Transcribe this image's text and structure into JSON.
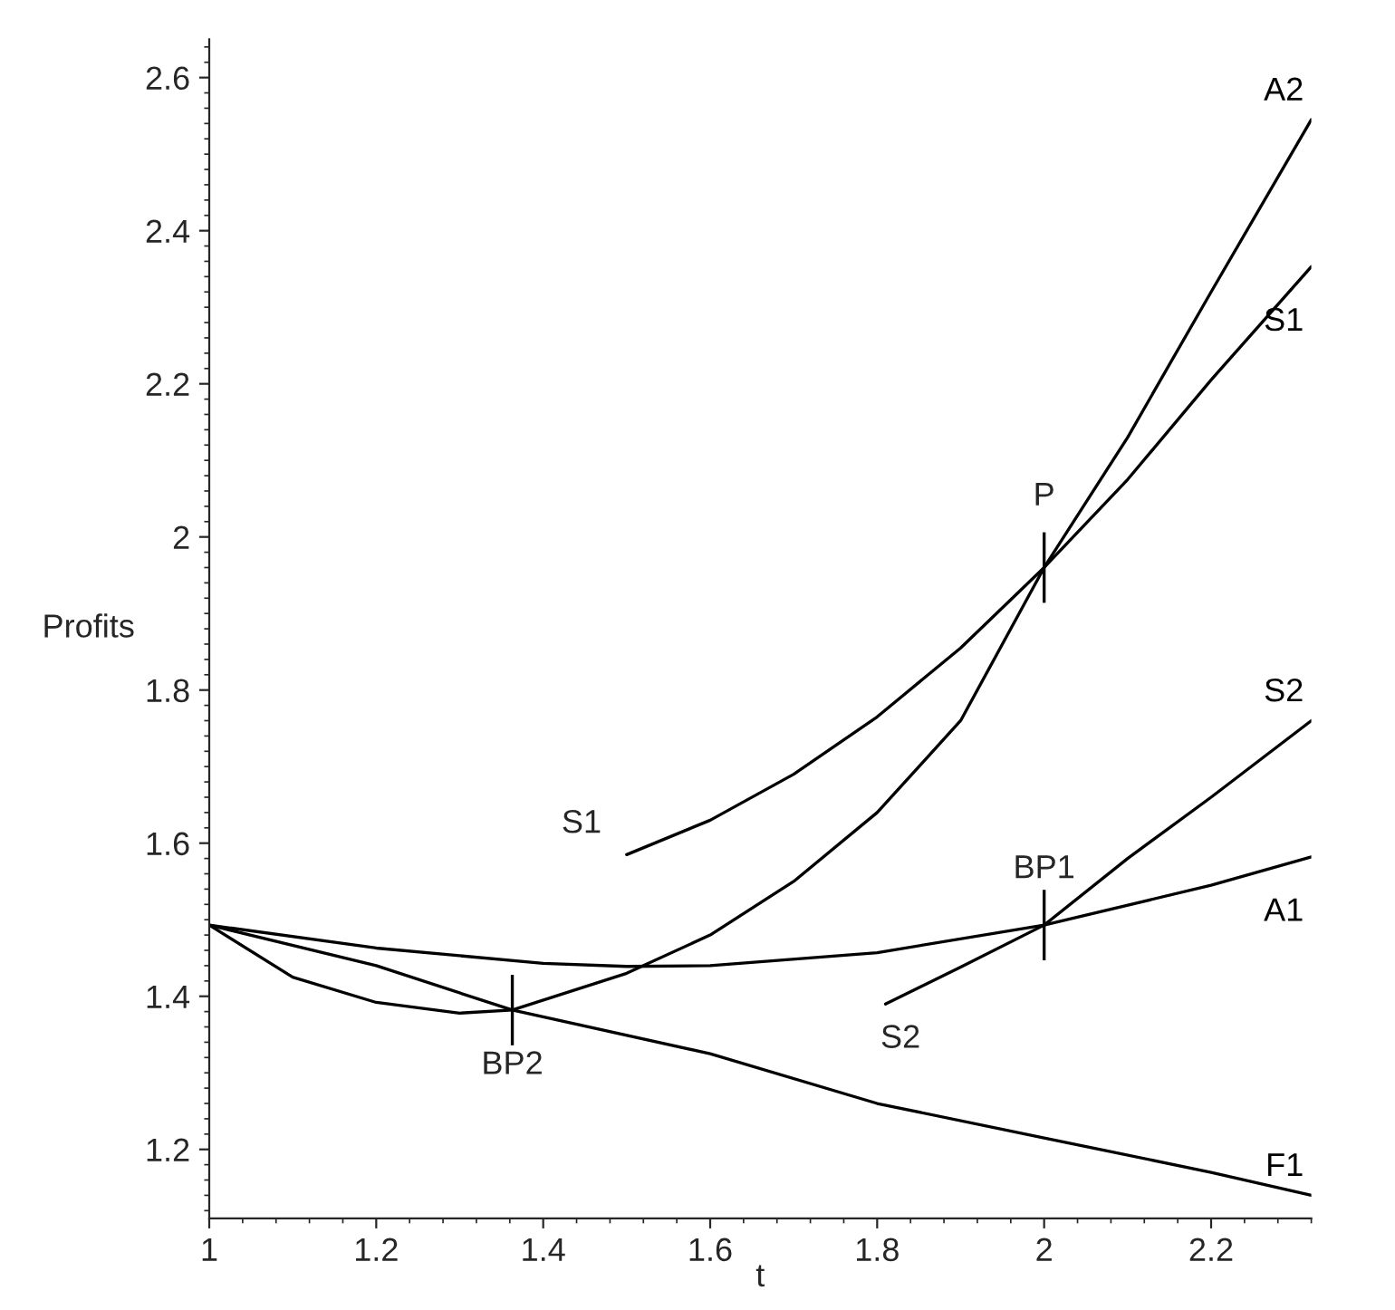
{
  "chart_data": {
    "type": "line",
    "xlabel": "t",
    "ylabel": "Profits",
    "xlim": [
      1,
      2.32
    ],
    "ylim": [
      1.11,
      2.65
    ],
    "xticks": [
      1,
      1.2,
      1.4,
      1.6,
      1.8,
      2,
      2.2
    ],
    "yticks": [
      1.2,
      1.4,
      1.6,
      1.8,
      2,
      2.2,
      2.4,
      2.6
    ],
    "grid": false,
    "legend": false,
    "marker": "none",
    "line_style": "solid",
    "series": [
      {
        "name": "F1",
        "color": "#000000",
        "x": [
          1,
          1.2,
          1.363,
          1.6,
          1.8,
          2,
          2.2,
          2.32
        ],
        "values": [
          1.493,
          1.44,
          1.382,
          1.325,
          1.26,
          1.215,
          1.17,
          1.14
        ]
      },
      {
        "name": "A1",
        "color": "#000000",
        "x": [
          1,
          1.2,
          1.4,
          1.5,
          1.6,
          1.8,
          2,
          2.2,
          2.32
        ],
        "values": [
          1.493,
          1.463,
          1.443,
          1.439,
          1.44,
          1.457,
          1.493,
          1.545,
          1.582
        ]
      },
      {
        "name": "A2",
        "color": "#000000",
        "x": [
          1,
          1.1,
          1.2,
          1.3,
          1.363,
          1.5,
          1.6,
          1.7,
          1.8,
          1.9,
          2,
          2.1,
          2.2,
          2.32
        ],
        "values": [
          1.493,
          1.425,
          1.392,
          1.378,
          1.382,
          1.43,
          1.48,
          1.55,
          1.64,
          1.76,
          1.96,
          2.13,
          2.32,
          2.545
        ]
      },
      {
        "name": "S1",
        "color": "#000000",
        "x": [
          1.5,
          1.6,
          1.7,
          1.8,
          1.9,
          2,
          2.1,
          2.2,
          2.32
        ],
        "values": [
          1.585,
          1.63,
          1.69,
          1.765,
          1.855,
          1.96,
          2.075,
          2.205,
          2.353
        ]
      },
      {
        "name": "S2",
        "color": "#000000",
        "x": [
          1.81,
          1.9,
          2,
          2.1,
          2.2,
          2.32
        ],
        "values": [
          1.39,
          1.438,
          1.493,
          1.58,
          1.66,
          1.76
        ]
      }
    ],
    "annotations": [
      {
        "text": "S1",
        "x": 1.5,
        "y": 1.585
      },
      {
        "text": "S2",
        "x": 1.81,
        "y": 1.39
      },
      {
        "text": "P",
        "x": 2,
        "y": 1.96
      },
      {
        "text": "BP1",
        "x": 2,
        "y": 1.493
      },
      {
        "text": "BP2",
        "x": 1.363,
        "y": 1.382
      }
    ]
  }
}
